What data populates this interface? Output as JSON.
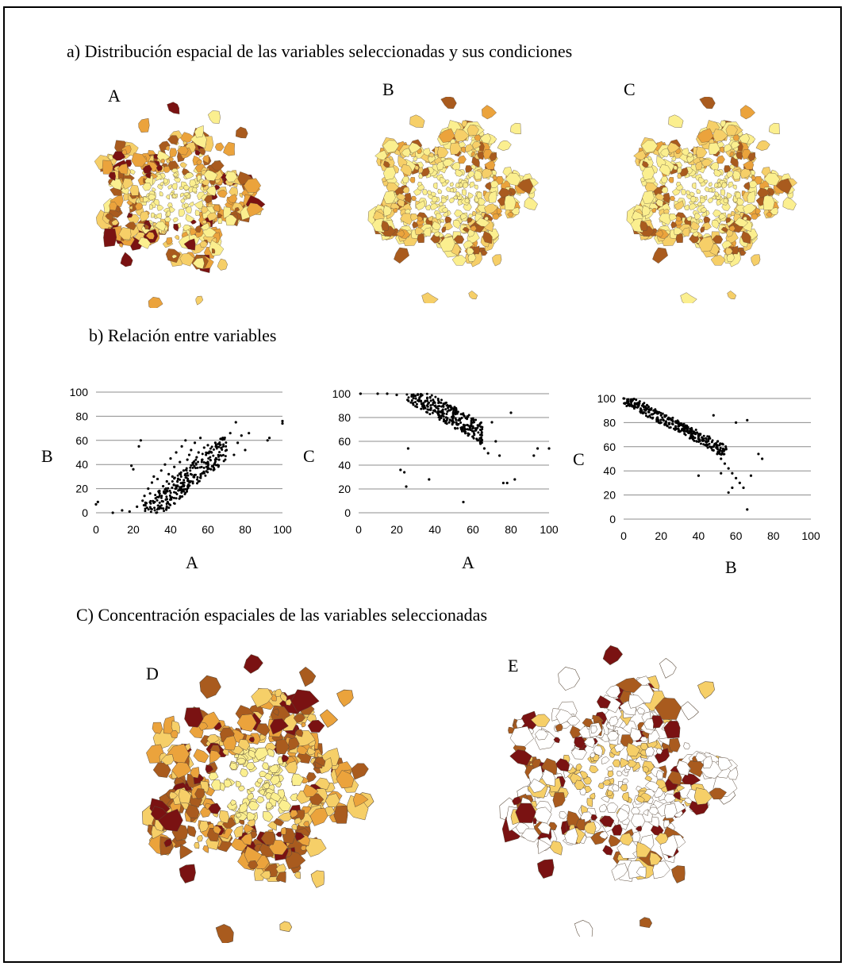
{
  "section_a": {
    "heading": "a) Distribución espacial de las variables seleccionadas y sus condiciones",
    "map_labels": [
      "A",
      "B",
      "C"
    ]
  },
  "section_b": {
    "heading": "b) Relación entre variables"
  },
  "section_c": {
    "heading": "C) Concentración espaciales de las variables seleccionadas",
    "map_labels": [
      "D",
      "E"
    ]
  },
  "palette": {
    "light": "#fbef8f",
    "mid_light": "#f6cf68",
    "mid": "#eba33c",
    "dark": "#a95b1e",
    "darkest": "#7a1212",
    "outline": "#5a4a3a"
  },
  "chart_data": [
    {
      "type": "scatter",
      "xlabel": "A",
      "ylabel": "B",
      "xlim": [
        0,
        100
      ],
      "ylim": [
        0,
        100
      ],
      "xticks": [
        0,
        20,
        40,
        60,
        80,
        100
      ],
      "yticks": [
        0,
        20,
        40,
        60,
        80,
        100
      ],
      "grid": "horizontal",
      "trend": "positive",
      "points": [
        [
          0,
          7
        ],
        [
          1,
          9
        ],
        [
          9,
          0
        ],
        [
          14,
          2
        ],
        [
          18,
          1
        ],
        [
          19,
          39
        ],
        [
          20,
          36
        ],
        [
          22,
          5
        ],
        [
          23,
          55
        ],
        [
          24,
          60
        ],
        [
          25,
          10
        ],
        [
          26,
          14
        ],
        [
          27,
          8
        ],
        [
          28,
          20
        ],
        [
          29,
          16
        ],
        [
          30,
          25
        ],
        [
          31,
          30
        ],
        [
          32,
          12
        ],
        [
          33,
          28
        ],
        [
          34,
          18
        ],
        [
          35,
          35
        ],
        [
          36,
          22
        ],
        [
          37,
          40
        ],
        [
          38,
          26
        ],
        [
          39,
          32
        ],
        [
          40,
          45
        ],
        [
          41,
          30
        ],
        [
          42,
          38
        ],
        [
          43,
          50
        ],
        [
          44,
          28
        ],
        [
          45,
          42
        ],
        [
          46,
          55
        ],
        [
          47,
          35
        ],
        [
          48,
          60
        ],
        [
          49,
          44
        ],
        [
          50,
          48
        ],
        [
          51,
          52
        ],
        [
          52,
          40
        ],
        [
          53,
          58
        ],
        [
          54,
          46
        ],
        [
          55,
          50
        ],
        [
          56,
          62
        ],
        [
          57,
          44
        ],
        [
          58,
          54
        ],
        [
          59,
          48
        ],
        [
          60,
          56
        ],
        [
          62,
          50
        ],
        [
          64,
          58
        ],
        [
          66,
          44
        ],
        [
          68,
          62
        ],
        [
          70,
          52
        ],
        [
          72,
          66
        ],
        [
          74,
          48
        ],
        [
          75,
          75
        ],
        [
          76,
          58
        ],
        [
          78,
          64
        ],
        [
          80,
          52
        ],
        [
          82,
          66
        ],
        [
          92,
          60
        ],
        [
          93,
          62
        ],
        [
          100,
          74
        ],
        [
          100,
          76
        ]
      ]
    },
    {
      "type": "scatter",
      "xlabel": "A",
      "ylabel": "C",
      "xlim": [
        0,
        100
      ],
      "ylim": [
        0,
        100
      ],
      "xticks": [
        0,
        20,
        40,
        60,
        80,
        100
      ],
      "yticks": [
        0,
        20,
        40,
        60,
        80,
        100
      ],
      "grid": "horizontal",
      "trend": "negative",
      "points": [
        [
          1,
          100
        ],
        [
          10,
          100
        ],
        [
          15,
          100
        ],
        [
          20,
          99
        ],
        [
          22,
          36
        ],
        [
          24,
          34
        ],
        [
          25,
          22
        ],
        [
          26,
          54
        ],
        [
          28,
          98
        ],
        [
          30,
          96
        ],
        [
          32,
          94
        ],
        [
          34,
          92
        ],
        [
          36,
          90
        ],
        [
          37,
          28
        ],
        [
          38,
          88
        ],
        [
          40,
          86
        ],
        [
          42,
          84
        ],
        [
          44,
          82
        ],
        [
          46,
          80
        ],
        [
          48,
          78
        ],
        [
          50,
          76
        ],
        [
          52,
          74
        ],
        [
          54,
          70
        ],
        [
          55,
          9
        ],
        [
          56,
          68
        ],
        [
          58,
          66
        ],
        [
          60,
          64
        ],
        [
          62,
          62
        ],
        [
          64,
          58
        ],
        [
          66,
          54
        ],
        [
          68,
          50
        ],
        [
          70,
          76
        ],
        [
          72,
          60
        ],
        [
          74,
          48
        ],
        [
          76,
          25
        ],
        [
          78,
          25
        ],
        [
          80,
          84
        ],
        [
          82,
          28
        ],
        [
          92,
          48
        ],
        [
          94,
          54
        ],
        [
          100,
          54
        ]
      ]
    },
    {
      "type": "scatter",
      "xlabel": "B",
      "ylabel": "C",
      "xlim": [
        0,
        100
      ],
      "ylim": [
        0,
        100
      ],
      "xticks": [
        0,
        20,
        40,
        60,
        80,
        100
      ],
      "yticks": [
        0,
        20,
        40,
        60,
        80,
        100
      ],
      "grid": "horizontal",
      "trend": "negative",
      "points": [
        [
          0,
          100
        ],
        [
          2,
          99
        ],
        [
          4,
          97
        ],
        [
          6,
          96
        ],
        [
          8,
          95
        ],
        [
          10,
          94
        ],
        [
          12,
          92
        ],
        [
          14,
          91
        ],
        [
          16,
          90
        ],
        [
          18,
          88
        ],
        [
          20,
          86
        ],
        [
          22,
          85
        ],
        [
          24,
          84
        ],
        [
          26,
          82
        ],
        [
          28,
          80
        ],
        [
          30,
          79
        ],
        [
          32,
          77
        ],
        [
          34,
          75
        ],
        [
          36,
          73
        ],
        [
          38,
          71
        ],
        [
          40,
          68
        ],
        [
          42,
          66
        ],
        [
          44,
          64
        ],
        [
          46,
          60
        ],
        [
          48,
          57
        ],
        [
          50,
          54
        ],
        [
          52,
          50
        ],
        [
          54,
          46
        ],
        [
          56,
          42
        ],
        [
          58,
          38
        ],
        [
          60,
          34
        ],
        [
          62,
          30
        ],
        [
          40,
          36
        ],
        [
          48,
          86
        ],
        [
          52,
          38
        ],
        [
          56,
          22
        ],
        [
          58,
          26
        ],
        [
          60,
          80
        ],
        [
          64,
          26
        ],
        [
          66,
          8
        ],
        [
          66,
          82
        ],
        [
          68,
          36
        ],
        [
          72,
          54
        ],
        [
          74,
          50
        ]
      ]
    }
  ]
}
